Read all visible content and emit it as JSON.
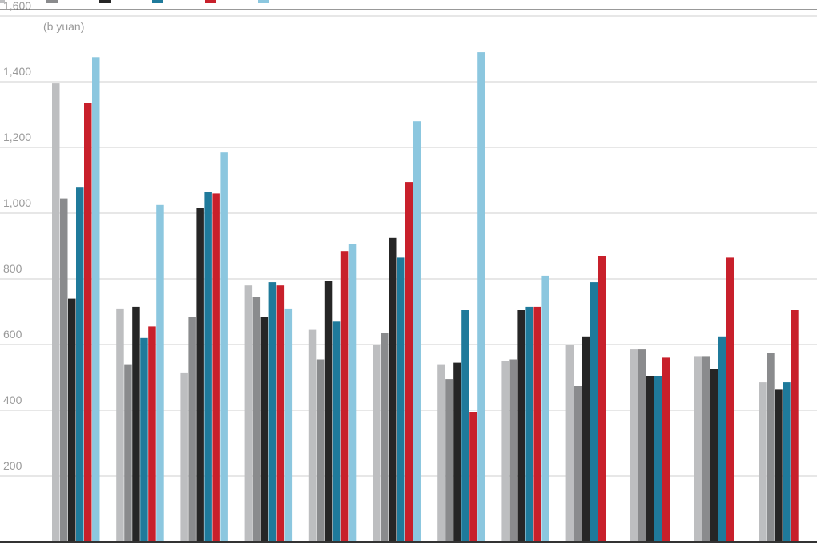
{
  "chart_data": {
    "type": "bar",
    "title": "",
    "xlabel": "",
    "ylabel": "",
    "unit_label": "(b yuan)",
    "ylim": [
      0,
      1600
    ],
    "yticks": [
      {
        "value": 200,
        "label": "200"
      },
      {
        "value": 400,
        "label": "400"
      },
      {
        "value": 600,
        "label": "600"
      },
      {
        "value": 800,
        "label": "800"
      },
      {
        "value": 1000,
        "label": "1,000"
      },
      {
        "value": 1200,
        "label": "1,200"
      },
      {
        "value": 1400,
        "label": "1,400"
      },
      {
        "value": 1600,
        "label": "1,600"
      }
    ],
    "grid": true,
    "legend_position": "top-left",
    "categories": [
      "",
      "",
      "",
      "",
      "",
      "",
      "",
      "",
      "",
      "",
      "",
      ""
    ],
    "series": [
      {
        "name": "",
        "color": "#bdbec0",
        "values": [
          1395,
          710,
          515,
          780,
          645,
          600,
          540,
          550,
          600,
          585,
          565,
          485
        ]
      },
      {
        "name": "",
        "color": "#8a8b8d",
        "values": [
          1045,
          540,
          685,
          745,
          555,
          635,
          495,
          555,
          475,
          585,
          565,
          575
        ]
      },
      {
        "name": "",
        "color": "#262626",
        "values": [
          740,
          715,
          1015,
          685,
          795,
          925,
          545,
          705,
          625,
          505,
          525,
          465
        ]
      },
      {
        "name": "",
        "color": "#1f7a9b",
        "values": [
          1080,
          620,
          1065,
          790,
          670,
          865,
          705,
          715,
          790,
          505,
          625,
          485
        ]
      },
      {
        "name": "",
        "color": "#c8202b",
        "values": [
          1335,
          655,
          1060,
          780,
          885,
          1095,
          395,
          715,
          870,
          560,
          865,
          705
        ]
      },
      {
        "name": "",
        "color": "#8cc7df",
        "values": [
          1475,
          1025,
          1185,
          710,
          905,
          1280,
          1490,
          810,
          null,
          null,
          null,
          null
        ]
      }
    ]
  }
}
